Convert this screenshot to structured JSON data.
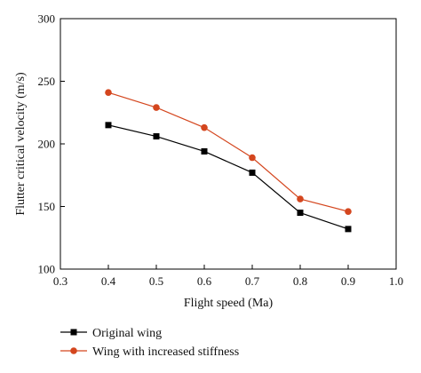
{
  "chart_data": {
    "type": "line",
    "title": "",
    "xlabel": "Flight speed (Ma)",
    "ylabel": "Flutter critical velocity (m/s)",
    "xlim": [
      0.3,
      1.0
    ],
    "ylim": [
      100,
      300
    ],
    "xticks": [
      "0.3",
      "0.4",
      "0.5",
      "0.6",
      "0.7",
      "0.8",
      "0.9",
      "1.0"
    ],
    "yticks": [
      "100",
      "150",
      "200",
      "250",
      "300"
    ],
    "grid": false,
    "legend_position": "bottom-left, below plot",
    "series": [
      {
        "name": "Original wing",
        "color": "#000000",
        "marker": "square",
        "x": [
          0.4,
          0.5,
          0.6,
          0.7,
          0.8,
          0.9
        ],
        "y": [
          215,
          206,
          194,
          177,
          145,
          132
        ]
      },
      {
        "name": "Wing with increased stiffness",
        "color": "#d4461e",
        "marker": "circle",
        "x": [
          0.4,
          0.5,
          0.6,
          0.7,
          0.8,
          0.9
        ],
        "y": [
          241,
          229,
          213,
          189,
          156,
          146
        ]
      }
    ]
  }
}
